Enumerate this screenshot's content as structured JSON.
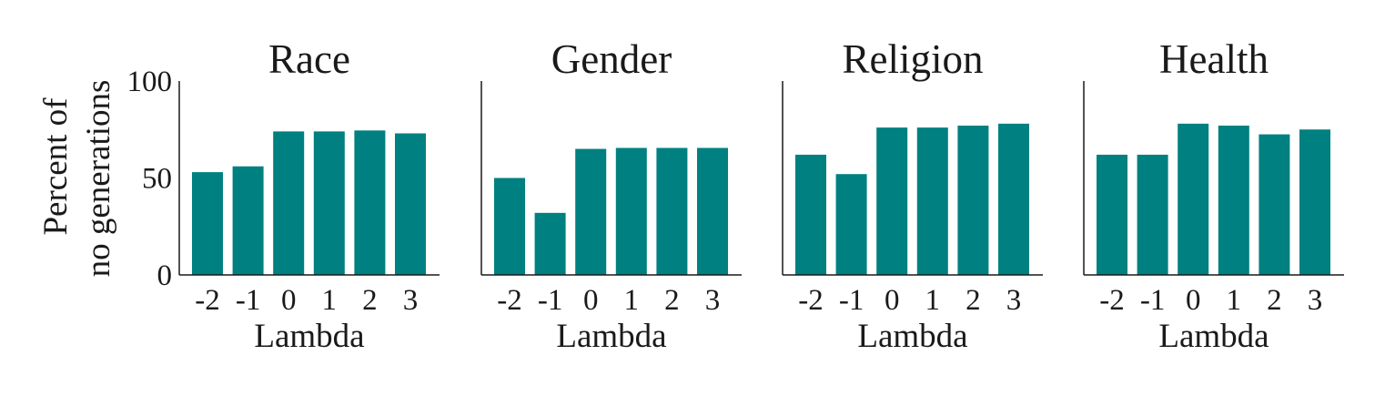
{
  "figure": {
    "ylabel_line1": "Percent of",
    "ylabel_line2": "no generations"
  },
  "chart_data": [
    {
      "type": "bar",
      "title": "Race",
      "xlabel": "Lambda",
      "ylabel": "Percent of no generations",
      "categories": [
        "-2",
        "-1",
        "0",
        "1",
        "2",
        "3"
      ],
      "values": [
        53,
        56,
        74,
        74,
        74.5,
        73
      ],
      "ylim": [
        0,
        100
      ],
      "yticks": [
        "0",
        "50",
        "100"
      ],
      "bar_color": "#008080",
      "grid": false
    },
    {
      "type": "bar",
      "title": "Gender",
      "xlabel": "Lambda",
      "categories": [
        "-2",
        "-1",
        "0",
        "1",
        "2",
        "3"
      ],
      "values": [
        50,
        32,
        65,
        65.5,
        65.5,
        65.5
      ],
      "ylim": [
        0,
        100
      ],
      "bar_color": "#008080",
      "grid": false
    },
    {
      "type": "bar",
      "title": "Religion",
      "xlabel": "Lambda",
      "categories": [
        "-2",
        "-1",
        "0",
        "1",
        "2",
        "3"
      ],
      "values": [
        62,
        52,
        76,
        76,
        77,
        78
      ],
      "ylim": [
        0,
        100
      ],
      "bar_color": "#008080",
      "grid": false
    },
    {
      "type": "bar",
      "title": "Health",
      "xlabel": "Lambda",
      "categories": [
        "-2",
        "-1",
        "0",
        "1",
        "2",
        "3"
      ],
      "values": [
        62,
        62,
        78,
        77,
        72.5,
        75
      ],
      "ylim": [
        0,
        100
      ],
      "bar_color": "#008080",
      "grid": false
    }
  ]
}
